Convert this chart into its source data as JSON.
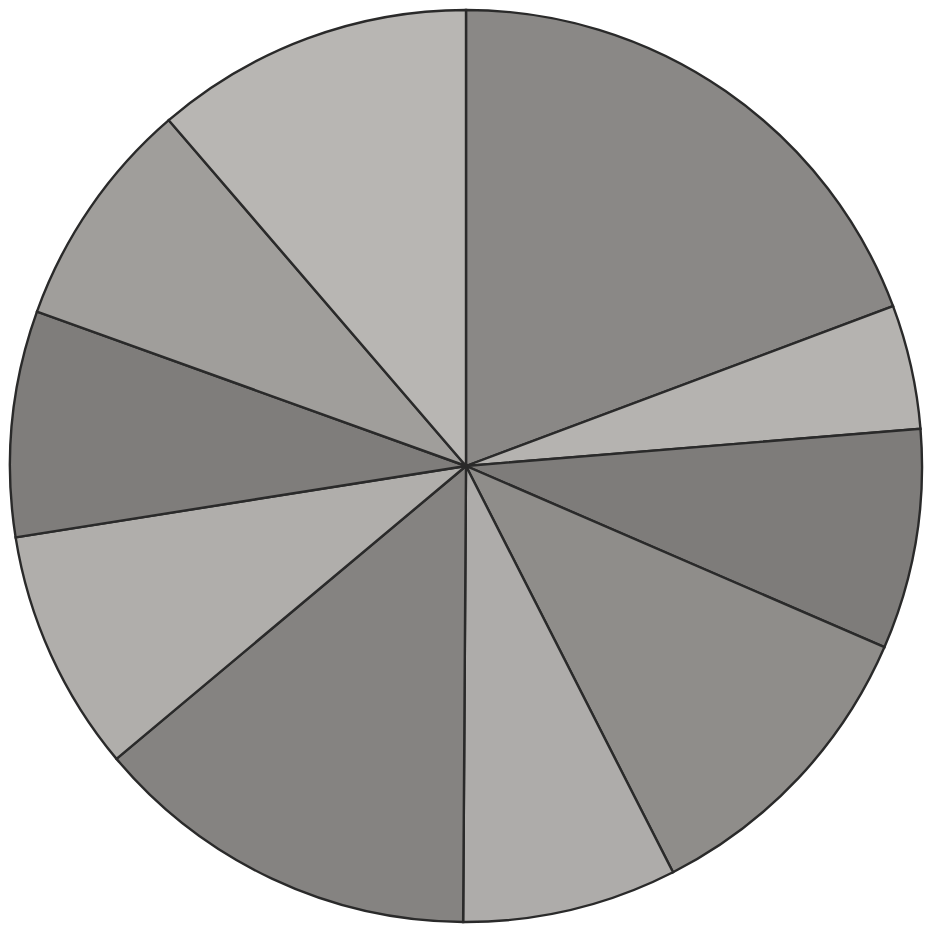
{
  "chart_data": {
    "type": "pie",
    "categories": [
      null,
      null,
      null,
      null,
      null,
      null,
      null,
      null,
      null,
      null
    ],
    "values": [
      19.3,
      4.4,
      7.8,
      11.0,
      7.6,
      13.8,
      8.6,
      8.0,
      8.2,
      11.3
    ],
    "colors": [
      "#8a8886",
      "#b5b3b0",
      "#7e7c7a",
      "#8f8d8a",
      "#aeacaa",
      "#858381",
      "#b0aeab",
      "#7f7d7b",
      "#a09e9b",
      "#b8b6b3"
    ],
    "legend": false
  }
}
